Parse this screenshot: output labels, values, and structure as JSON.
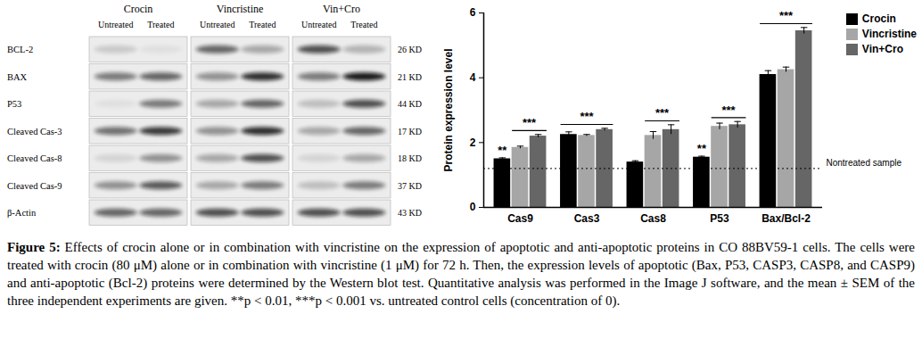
{
  "blot": {
    "groups": [
      "Crocin",
      "Vincristine",
      "Vin+Cro"
    ],
    "lanes": [
      "Untreated",
      "Treated"
    ],
    "rows": [
      {
        "label": "BCL-2",
        "size": "26 KD"
      },
      {
        "label": "BAX",
        "size": "21 KD"
      },
      {
        "label": "P53",
        "size": "44 KD"
      },
      {
        "label": "Cleaved Cas-3",
        "size": "17 KD"
      },
      {
        "label": "Cleaved Cas-8",
        "size": "18 KD"
      },
      {
        "label": "Cleaved Cas-9",
        "size": "37 KD"
      },
      {
        "label": "β-Actin",
        "size": "43 KD"
      }
    ]
  },
  "chart_data": {
    "type": "bar",
    "categories": [
      "Cas9",
      "Cas3",
      "Cas8",
      "P53",
      "Bax/Bcl-2"
    ],
    "series": [
      {
        "name": "Crocin",
        "color": "#000000",
        "values": [
          1.5,
          2.25,
          1.4,
          1.55,
          4.1
        ],
        "errors": [
          0.03,
          0.08,
          0.04,
          0.03,
          0.12
        ]
      },
      {
        "name": "Vincristine",
        "color": "#a6a6a6",
        "values": [
          1.85,
          2.22,
          2.22,
          2.5,
          4.25
        ],
        "errors": [
          0.04,
          0.03,
          0.12,
          0.1,
          0.08
        ]
      },
      {
        "name": "Vin+Cro",
        "color": "#666666",
        "values": [
          2.2,
          2.4,
          2.4,
          2.55,
          5.45
        ],
        "errors": [
          0.05,
          0.04,
          0.15,
          0.1,
          0.1
        ]
      }
    ],
    "y_label": "Protein expression level",
    "ylim": [
      0,
      6
    ],
    "yticks": [
      0,
      2,
      4,
      6
    ],
    "grid": false,
    "legend": "top-right",
    "reference_line": {
      "value": 1.2,
      "label": "Nontreated sample"
    },
    "annotations": [
      {
        "category": "Cas9",
        "series": [
          "Crocin"
        ],
        "text": "**"
      },
      {
        "category": "Cas9",
        "series": [
          "Vincristine",
          "Vin+Cro"
        ],
        "text": "***"
      },
      {
        "category": "Cas3",
        "series": [
          "Crocin",
          "Vincristine",
          "Vin+Cro"
        ],
        "text": "***"
      },
      {
        "category": "Cas8",
        "series": [
          "Vincristine",
          "Vin+Cro"
        ],
        "text": "***"
      },
      {
        "category": "P53",
        "series": [
          "Crocin"
        ],
        "text": "**"
      },
      {
        "category": "P53",
        "series": [
          "Vincristine",
          "Vin+Cro"
        ],
        "text": "***"
      },
      {
        "category": "Bax/Bcl-2",
        "series": [
          "Crocin",
          "Vincristine",
          "Vin+Cro"
        ],
        "text": "***"
      }
    ]
  },
  "caption": {
    "label": "Figure 5:",
    "text": "Effects of crocin alone or in combination with vincristine on the expression of apoptotic and anti-apoptotic proteins in CO 88BV59-1 cells. The cells were treated with crocin (80 μM) alone or in combination with vincristine (1 μM) for 72 h. Then, the expression levels of apoptotic (Bax, P53, CASP3, CASP8, and CASP9) and anti-apoptotic (Bcl-2) proteins were determined by the Western blot test. Quantitative analysis was performed in the Image J software, and the mean ± SEM of the three independent experiments are given. **p < 0.01, ***p < 0.001 vs. untreated control cells (concentration of 0)."
  }
}
